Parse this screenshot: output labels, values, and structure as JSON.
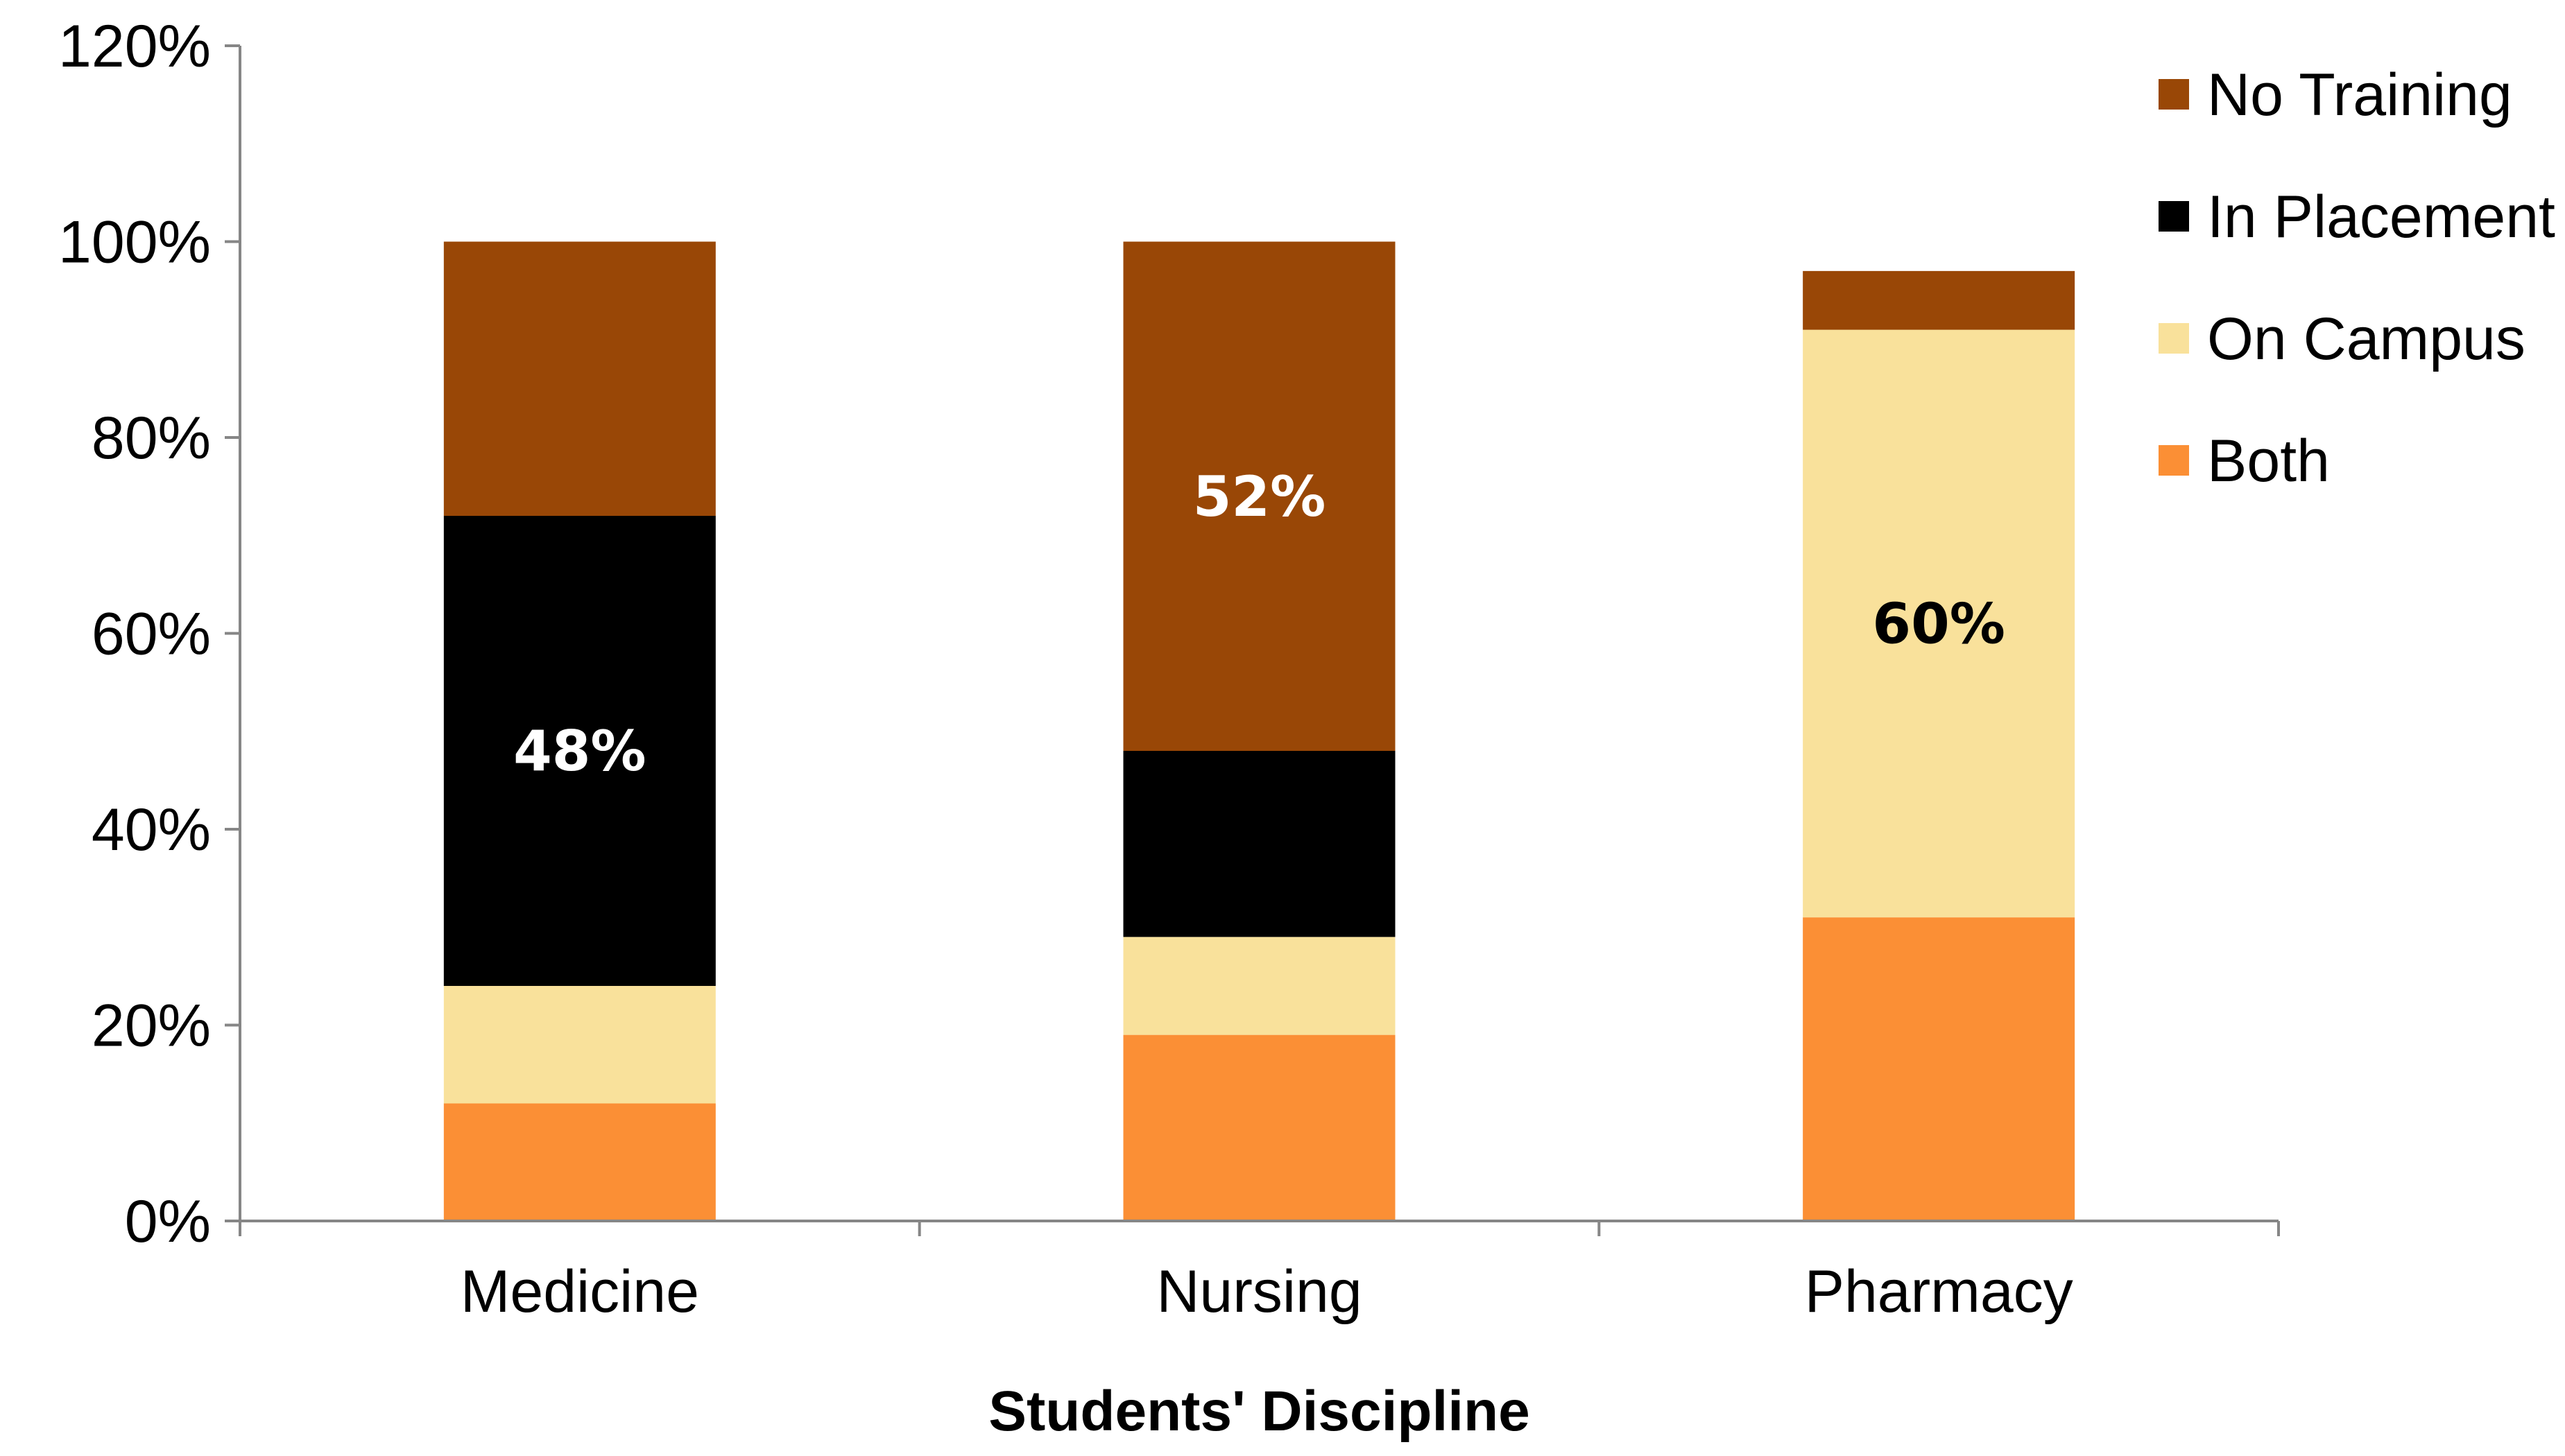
{
  "chart_data": {
    "type": "bar",
    "stacked": true,
    "title": "",
    "xlabel": "Students' Discipline",
    "ylabel": "",
    "ylim": [
      0,
      120
    ],
    "yticks": [
      0,
      20,
      40,
      60,
      80,
      100,
      120
    ],
    "ytick_labels": [
      "0%",
      "20%",
      "40%",
      "60%",
      "80%",
      "100%",
      "120%"
    ],
    "grid": false,
    "legend_position": "top-right",
    "categories": [
      "Medicine",
      "Nursing",
      "Pharmacy"
    ],
    "series": [
      {
        "name": "Both",
        "color": "#FB8F35",
        "values": [
          12,
          19,
          31
        ]
      },
      {
        "name": "On Campus",
        "color": "#F9E19B",
        "values": [
          12,
          10,
          60
        ]
      },
      {
        "name": "In Placement",
        "color": "#000000",
        "values": [
          48,
          19,
          0
        ]
      },
      {
        "name": "No Training",
        "color": "#994706",
        "values": [
          28,
          52,
          6
        ]
      }
    ],
    "legend_order": [
      "No Training",
      "In Placement",
      "On Campus",
      "Both"
    ],
    "data_labels": [
      {
        "category": "Medicine",
        "series": "In Placement",
        "text": "48%",
        "color": "#FFFFFF"
      },
      {
        "category": "Nursing",
        "series": "No Training",
        "text": "52%",
        "color": "#FFFFFF"
      },
      {
        "category": "Pharmacy",
        "series": "On Campus",
        "text": "60%",
        "color": "#000000"
      }
    ]
  }
}
